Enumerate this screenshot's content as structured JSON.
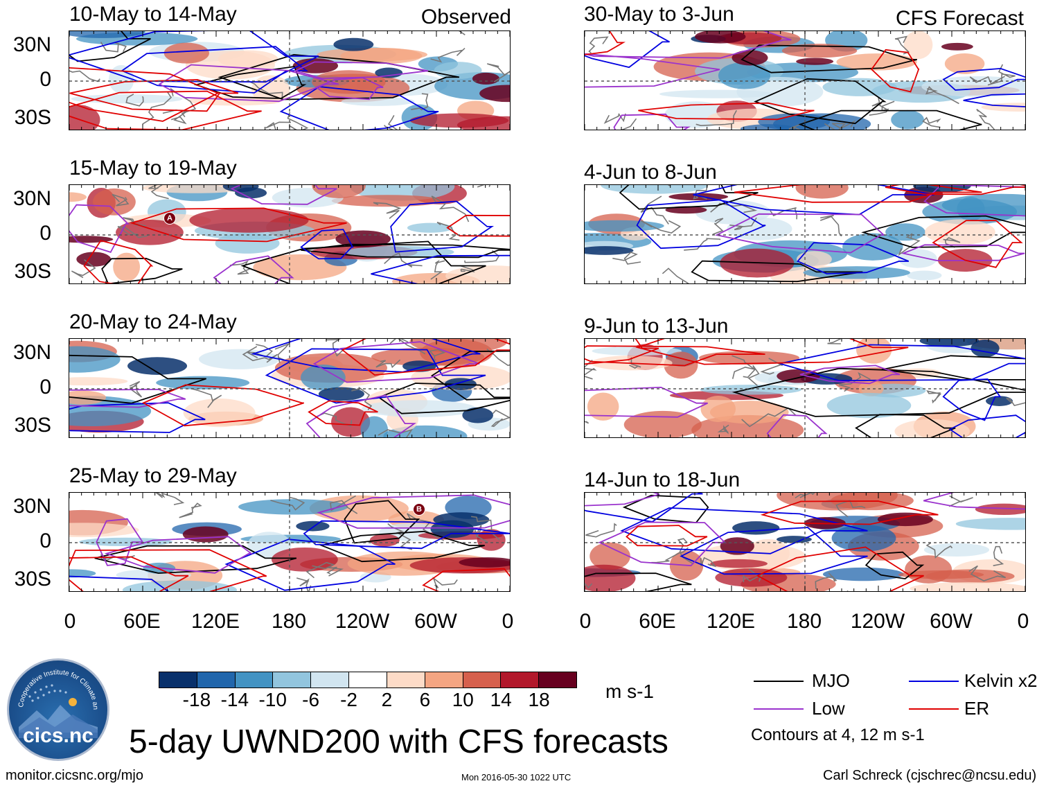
{
  "panels": {
    "observed": [
      {
        "title": "10-May to 14-May"
      },
      {
        "title": "15-May to 19-May"
      },
      {
        "title": "20-May to 24-May"
      },
      {
        "title": "25-May to 29-May"
      }
    ],
    "forecast": [
      {
        "title": "30-May to 3-Jun"
      },
      {
        "title": "4-Jun to 8-Jun"
      },
      {
        "title": "9-Jun to 13-Jun"
      },
      {
        "title": "14-Jun to 18-Jun"
      }
    ],
    "observed_label": "Observed",
    "forecast_label": "CFS Forecast"
  },
  "axes": {
    "lat_ticks": [
      "30N",
      "0",
      "30S"
    ],
    "lon_ticks": [
      "0",
      "60E",
      "120E",
      "180",
      "120W",
      "60W",
      "0"
    ]
  },
  "colorbar": {
    "labels": [
      "-18",
      "-14",
      "-10",
      "-6",
      "-2",
      "2",
      "6",
      "10",
      "14",
      "18"
    ],
    "colors": [
      "#08306b",
      "#2166ac",
      "#4393c3",
      "#92c5de",
      "#d1e5f0",
      "#ffffff",
      "#fddbc7",
      "#f4a582",
      "#d6604d",
      "#b2182b",
      "#67001f"
    ],
    "units": "m s-1"
  },
  "legend": {
    "mjo": {
      "label": "MJO",
      "color": "#000000"
    },
    "kelvin": {
      "label": "Kelvin x2",
      "color": "#0000e0"
    },
    "low": {
      "label": "Low",
      "color": "#9a32cd"
    },
    "er": {
      "label": "ER",
      "color": "#e00000"
    },
    "note": "Contours at 4, 12 m s-1"
  },
  "title": "5-day UWND200 with CFS forecasts",
  "footer": {
    "url": "monitor.cicsnc.org/mjo",
    "timestamp": "Mon 2016-05-30 1022 UTC",
    "credit": "Carl Schreck (cjschrec@ncsu.edu)"
  },
  "logo": {
    "text": "cics.nc",
    "ring_text": "Cooperative Institute for Climate and Satellites"
  },
  "markers": [
    {
      "label": "A"
    },
    {
      "label": "B"
    }
  ]
}
